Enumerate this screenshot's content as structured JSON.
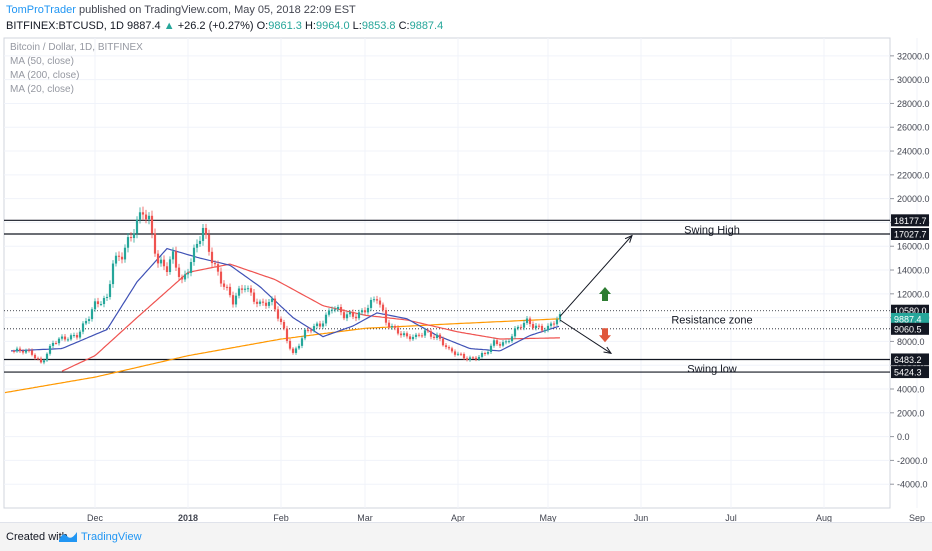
{
  "header": {
    "author": "TomProTrader",
    "published_text": "published on TradingView.com, May 05, 2018 22:09 EST",
    "symbol": "BITFINEX:BTCUSD, 1D",
    "last": "9887.4",
    "change": "+26.2 (+0.27%)",
    "o_label": "O:",
    "o_value": "9861.3",
    "h_label": "H:",
    "h_value": "9964.0",
    "l_label": "L:",
    "l_value": "9853.8",
    "c_label": "C:",
    "c_value": "9887.4"
  },
  "legend": {
    "title": "Bitcoin / Dollar, 1D, BITFINEX",
    "ma50": "MA (50, close)",
    "ma200": "MA (200, close)",
    "ma20": "MA (20, close)"
  },
  "footer": {
    "created_with": "Created with",
    "brand": "TradingView"
  },
  "colors": {
    "up": "#26a69a",
    "down": "#ef5350",
    "ma50": "#ef5350",
    "ma200": "#ff9800",
    "ma20": "#3f51b5",
    "author": "#2196f3",
    "arrow_up": "#2e7d32",
    "arrow_down": "#e0573b"
  },
  "chart_data": {
    "type": "candlestick",
    "y_axis_ticks": [
      "32000.0",
      "30000.0",
      "28000.0",
      "26000.0",
      "24000.0",
      "22000.0",
      "20000.0",
      "18000.0",
      "16000.0",
      "14000.0",
      "12000.0",
      "10000.0",
      "8000.0",
      "6000.0",
      "4000.0",
      "2000.0",
      "0.0",
      "-2000.0",
      "-4000.0"
    ],
    "ylim": [
      -6000,
      33500
    ],
    "x_axis_labels": [
      "Dec",
      "2018",
      "Feb",
      "Mar",
      "Apr",
      "May",
      "Jun",
      "Jul",
      "Aug",
      "Sep"
    ],
    "price_labels": [
      "18177.7",
      "17027.7",
      "10580.0",
      "9887.4",
      "9060.5",
      "6483.2",
      "5424.3"
    ],
    "levels": [
      {
        "price": 18177.7,
        "style": "solid"
      },
      {
        "price": 17027.7,
        "style": "solid"
      },
      {
        "price": 10580.0,
        "style": "dotted"
      },
      {
        "price": 9060.5,
        "style": "dotted"
      },
      {
        "price": 6483.2,
        "style": "solid"
      },
      {
        "price": 5424.3,
        "style": "solid"
      }
    ],
    "annotations": [
      {
        "text": "Swing High",
        "price": 18177.7
      },
      {
        "text": "Resistance zone",
        "price": 10580.0
      },
      {
        "text": "Swing low",
        "price": 6483.2
      }
    ],
    "price_path": [
      [
        "2017-11-03",
        7200
      ],
      [
        "2017-11-10",
        7000
      ],
      [
        "2017-11-13",
        6300
      ],
      [
        "2017-11-17",
        7800
      ],
      [
        "2017-11-20",
        8100
      ],
      [
        "2017-11-25",
        8700
      ],
      [
        "2017-11-29",
        10000
      ],
      [
        "2017-12-01",
        10900
      ],
      [
        "2017-12-05",
        11700
      ],
      [
        "2017-12-07",
        15000
      ],
      [
        "2017-12-10",
        15200
      ],
      [
        "2017-12-13",
        16500
      ],
      [
        "2017-12-17",
        19300
      ],
      [
        "2017-12-19",
        18500
      ],
      [
        "2017-12-22",
        14500
      ],
      [
        "2017-12-25",
        13900
      ],
      [
        "2017-12-27",
        15200
      ],
      [
        "2017-12-30",
        13200
      ],
      [
        "2018-01-02",
        14800
      ],
      [
        "2018-01-06",
        17100
      ],
      [
        "2018-01-09",
        15000
      ],
      [
        "2018-01-12",
        13400
      ],
      [
        "2018-01-16",
        11200
      ],
      [
        "2018-01-20",
        12700
      ],
      [
        "2018-01-25",
        11200
      ],
      [
        "2018-01-29",
        11100
      ],
      [
        "2018-02-02",
        9000
      ],
      [
        "2018-02-05",
        7000
      ],
      [
        "2018-02-09",
        8600
      ],
      [
        "2018-02-14",
        9500
      ],
      [
        "2018-02-18",
        11000
      ],
      [
        "2018-02-22",
        10000
      ],
      [
        "2018-02-26",
        10300
      ],
      [
        "2018-03-02",
        11000
      ],
      [
        "2018-03-05",
        11500
      ],
      [
        "2018-03-08",
        9600
      ],
      [
        "2018-03-12",
        9000
      ],
      [
        "2018-03-15",
        8300
      ],
      [
        "2018-03-18",
        8200
      ],
      [
        "2018-03-21",
        8900
      ],
      [
        "2018-03-25",
        8500
      ],
      [
        "2018-03-29",
        7100
      ],
      [
        "2018-04-01",
        6900
      ],
      [
        "2018-04-06",
        6600
      ],
      [
        "2018-04-10",
        6800
      ],
      [
        "2018-04-13",
        7900
      ],
      [
        "2018-04-17",
        8000
      ],
      [
        "2018-04-20",
        8800
      ],
      [
        "2018-04-24",
        9600
      ],
      [
        "2018-04-28",
        9300
      ],
      [
        "2018-05-01",
        9100
      ],
      [
        "2018-05-05",
        9887.4
      ]
    ],
    "ma20_path": [
      [
        "2017-11-03",
        7200
      ],
      [
        "2017-11-20",
        7400
      ],
      [
        "2017-12-05",
        9000
      ],
      [
        "2017-12-15",
        13000
      ],
      [
        "2017-12-25",
        15800
      ],
      [
        "2018-01-05",
        15000
      ],
      [
        "2018-01-15",
        14400
      ],
      [
        "2018-01-25",
        12600
      ],
      [
        "2018-02-05",
        10000
      ],
      [
        "2018-02-15",
        8400
      ],
      [
        "2018-02-25",
        9300
      ],
      [
        "2018-03-05",
        10400
      ],
      [
        "2018-03-15",
        9900
      ],
      [
        "2018-03-25",
        8500
      ],
      [
        "2018-04-05",
        7400
      ],
      [
        "2018-04-15",
        7200
      ],
      [
        "2018-04-25",
        8500
      ],
      [
        "2018-05-05",
        9300
      ]
    ],
    "ma50_path": [
      [
        "2017-11-20",
        5500
      ],
      [
        "2017-12-01",
        6800
      ],
      [
        "2017-12-15",
        10000
      ],
      [
        "2018-01-01",
        13800
      ],
      [
        "2018-01-15",
        14500
      ],
      [
        "2018-01-30",
        13200
      ],
      [
        "2018-02-15",
        11000
      ],
      [
        "2018-03-01",
        10200
      ],
      [
        "2018-03-15",
        9800
      ],
      [
        "2018-04-01",
        8800
      ],
      [
        "2018-04-15",
        8200
      ],
      [
        "2018-05-05",
        8300
      ]
    ],
    "ma200_path": [
      [
        "2017-11-01",
        3700
      ],
      [
        "2017-12-01",
        5000
      ],
      [
        "2018-01-01",
        6800
      ],
      [
        "2018-02-01",
        8200
      ],
      [
        "2018-03-01",
        9100
      ],
      [
        "2018-04-01",
        9500
      ],
      [
        "2018-05-05",
        9900
      ]
    ],
    "projection": {
      "up": {
        "from": [
          "2018-05-05",
          10100
        ],
        "to": [
          "2018-05-29",
          16900
        ]
      },
      "down": {
        "from": [
          "2018-05-05",
          9800
        ],
        "to": [
          "2018-05-22",
          7000
        ]
      }
    }
  }
}
